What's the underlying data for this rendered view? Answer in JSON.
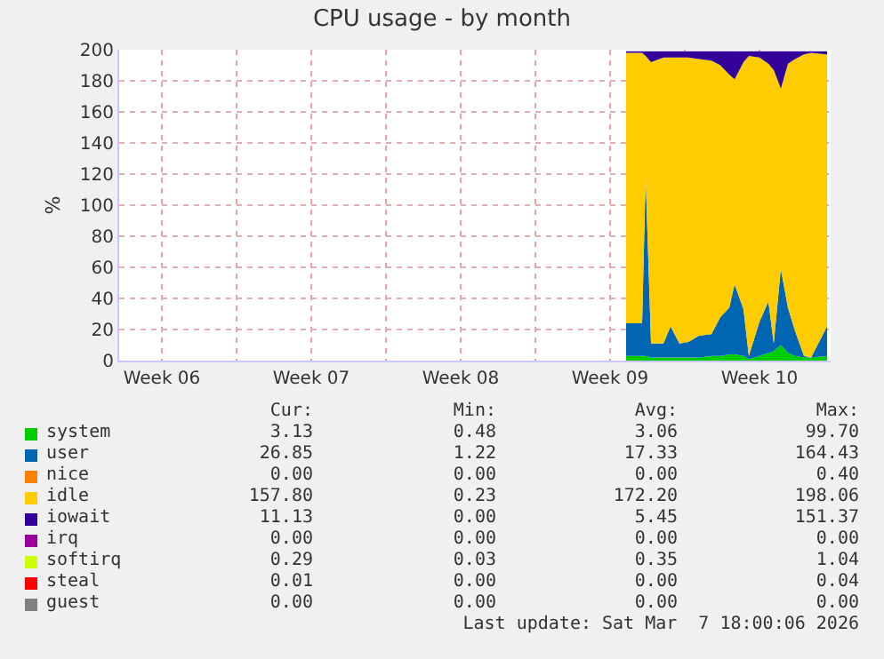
{
  "chart_data": {
    "type": "area",
    "title": "CPU usage - by month",
    "ylabel": "%",
    "stacked": true,
    "grid": true,
    "legend": "bottom",
    "x": [
      "2026-02-27T06:00",
      "2026-02-28T00:00",
      "2026-02-28T04:00",
      "2026-02-28T10:00",
      "2026-03-01T00:00",
      "2026-03-01T08:00",
      "2026-03-01T18:00",
      "2026-03-02T04:00",
      "2026-03-02T16:00",
      "2026-03-03T06:00",
      "2026-03-03T16:00",
      "2026-03-04T02:00",
      "2026-03-04T08:00",
      "2026-03-04T18:00",
      "2026-03-05T00:00",
      "2026-03-05T12:00",
      "2026-03-05T22:00",
      "2026-03-06T04:00",
      "2026-03-06T12:00",
      "2026-03-06T20:00",
      "2026-03-07T04:00",
      "2026-03-07T14:00",
      "2026-03-07T22:00",
      "2026-03-08T16:00"
    ],
    "xlim": [
      "2026-02-03T12:00",
      "2026-03-08T20:00"
    ],
    "xticks": [
      {
        "value": "2026-02-05T12:00",
        "label": "Week 06"
      },
      {
        "value": "2026-02-09",
        "label": null
      },
      {
        "value": "2026-02-12T12:00",
        "label": "Week 07"
      },
      {
        "value": "2026-02-16",
        "label": null
      },
      {
        "value": "2026-02-19T12:00",
        "label": "Week 08"
      },
      {
        "value": "2026-02-23",
        "label": null
      },
      {
        "value": "2026-02-26T12:00",
        "label": "Week 09"
      },
      {
        "value": "2026-03-02",
        "label": null
      },
      {
        "value": "2026-03-05T12:00",
        "label": "Week 10"
      }
    ],
    "ylim": [
      0,
      200
    ],
    "yticks": [
      0,
      20,
      40,
      60,
      80,
      100,
      120,
      140,
      160,
      180,
      200
    ],
    "series": [
      {
        "name": "system",
        "color": "#00cc00",
        "values": [
          3,
          3,
          3,
          2,
          2,
          2,
          2,
          2,
          2,
          3,
          3,
          4,
          4,
          3,
          1,
          3,
          5,
          6,
          10,
          5,
          3,
          2,
          2,
          3
        ]
      },
      {
        "name": "user",
        "color": "#0066b3",
        "values": [
          21,
          21,
          115,
          9,
          9,
          20,
          9,
          10,
          14,
          14,
          25,
          30,
          45,
          30,
          2,
          22,
          33,
          5,
          49,
          29,
          16,
          1,
          0,
          19
        ]
      },
      {
        "name": "nice",
        "color": "#ff8000",
        "values": [
          null,
          null,
          null,
          null,
          null,
          null,
          null,
          null,
          null,
          null,
          null,
          null,
          null,
          null,
          null,
          null,
          null,
          null,
          null,
          null,
          null,
          null,
          null,
          null
        ]
      },
      {
        "name": "idle",
        "color": "#ffcc00",
        "values": [
          174,
          174,
          78,
          181,
          184,
          173,
          184,
          183,
          178,
          176,
          162,
          150,
          132,
          159,
          193,
          170,
          153,
          176,
          116,
          157,
          175,
          194,
          196,
          175
        ]
      },
      {
        "name": "iowait",
        "color": "#330099",
        "values": [
          1,
          1,
          3,
          7,
          4,
          4,
          4,
          4,
          5,
          6,
          9,
          15,
          18,
          7,
          3,
          4,
          8,
          12,
          24,
          8,
          5,
          2,
          1,
          2
        ]
      },
      {
        "name": "irq",
        "color": "#990099",
        "values": [
          null,
          null,
          null,
          null,
          null,
          null,
          null,
          null,
          null,
          null,
          null,
          null,
          null,
          null,
          null,
          null,
          null,
          null,
          null,
          null,
          null,
          null,
          null,
          null
        ]
      },
      {
        "name": "softirq",
        "color": "#ccff00",
        "values": [
          null,
          null,
          null,
          null,
          null,
          null,
          null,
          null,
          null,
          null,
          null,
          null,
          null,
          null,
          null,
          null,
          null,
          null,
          null,
          null,
          null,
          null,
          null,
          null
        ]
      },
      {
        "name": "steal",
        "color": "#ff0000",
        "values": [
          null,
          null,
          null,
          null,
          null,
          null,
          null,
          null,
          null,
          null,
          null,
          null,
          null,
          null,
          null,
          null,
          null,
          null,
          null,
          null,
          null,
          null,
          null,
          null
        ]
      },
      {
        "name": "guest",
        "color": "#808080",
        "values": [
          null,
          null,
          null,
          null,
          null,
          null,
          null,
          null,
          null,
          null,
          null,
          null,
          null,
          null,
          null,
          null,
          null,
          null,
          null,
          null,
          null,
          null,
          null,
          null
        ]
      }
    ],
    "annotations": [
      "Cur: Min: Avg: Max:",
      "3.13 0.48 3.06 99.70",
      "26.85 1.22 17.33 164.43",
      "0.00 0.00 0.00 0.40",
      "157.80 0.23 172.20 198.06",
      "11.13 0.00 5.45 151.37",
      "0.00 0.00 0.00 0.00",
      "0.29 0.03 0.35 1.04",
      "0.01 0.00 0.00 0.04",
      "0.00 0.00 0.00 0.00",
      "Last update: Sat Mar  7 18:00:06 2026"
    ]
  }
}
